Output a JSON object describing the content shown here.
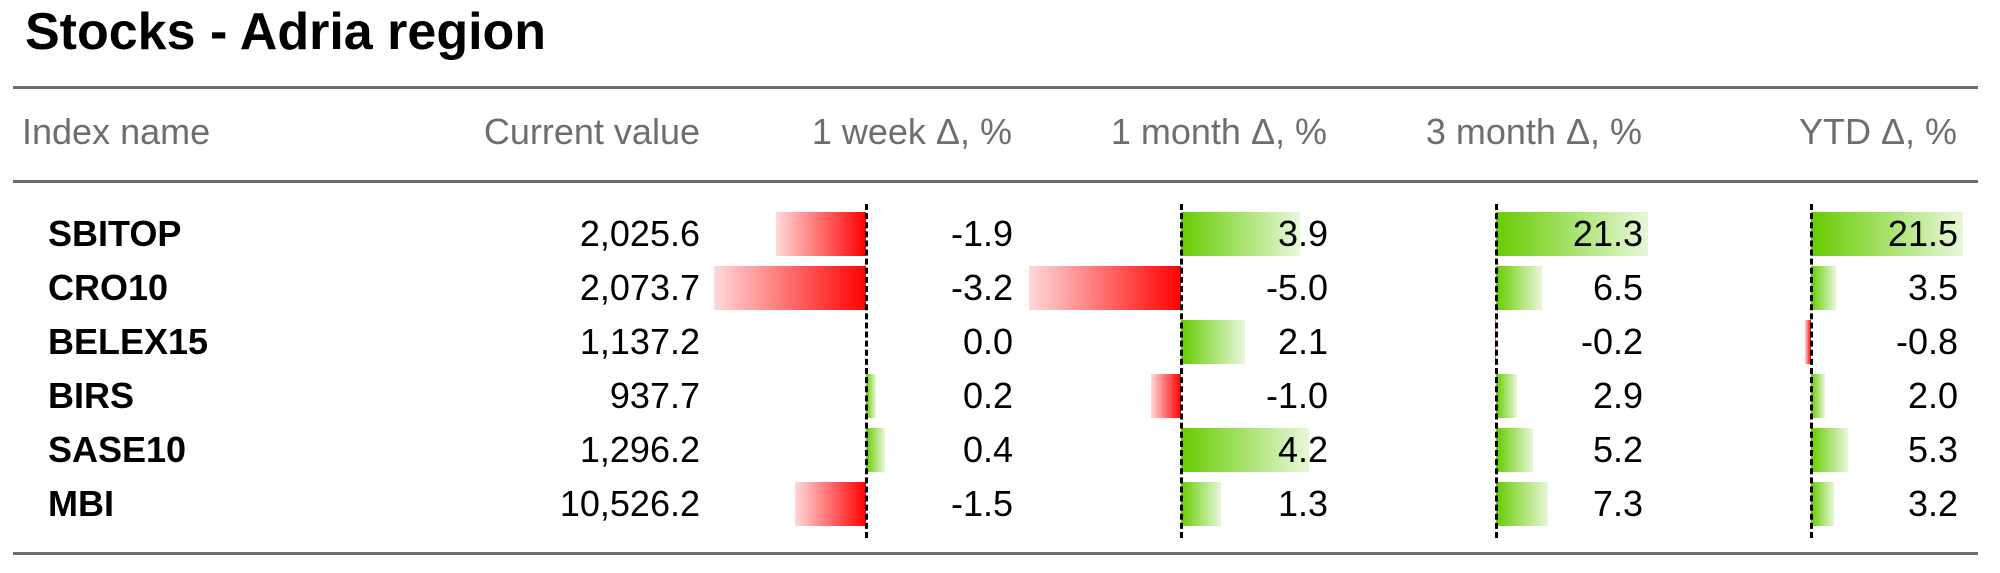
{
  "title": "Stocks - Adria region",
  "columns": [
    "Index name",
    "Current value",
    "1 week Δ, %",
    "1 month Δ, %",
    "3 month Δ, %",
    "YTD Δ, %"
  ],
  "colors": {
    "positive": "#66cc00",
    "negative": "#ff0000",
    "rule": "#6e6e6e",
    "header_text": "#6e6e6e"
  },
  "chart_data": {
    "type": "table",
    "title": "Stocks - Adria region",
    "columns": [
      "Index name",
      "Current value",
      "1 week Δ, %",
      "1 month Δ, %",
      "3 month Δ, %",
      "YTD Δ, %"
    ],
    "rows": [
      {
        "name": "SBITOP",
        "value": "2,025.6",
        "changes": [
          -1.9,
          3.9,
          21.3,
          21.5
        ]
      },
      {
        "name": "CRO10",
        "value": "2,073.7",
        "changes": [
          -3.2,
          -5.0,
          6.5,
          3.5
        ]
      },
      {
        "name": "BELEX15",
        "value": "1,137.2",
        "changes": [
          0.0,
          2.1,
          -0.2,
          -0.8
        ]
      },
      {
        "name": "BIRS",
        "value": "937.7",
        "changes": [
          0.2,
          -1.0,
          2.9,
          2.0
        ]
      },
      {
        "name": "SASE10",
        "value": "1,296.2",
        "changes": [
          0.4,
          4.2,
          5.2,
          5.3
        ]
      },
      {
        "name": "MBI",
        "value": "10,526.2",
        "changes": [
          -1.5,
          1.3,
          7.3,
          3.2
        ]
      }
    ]
  }
}
